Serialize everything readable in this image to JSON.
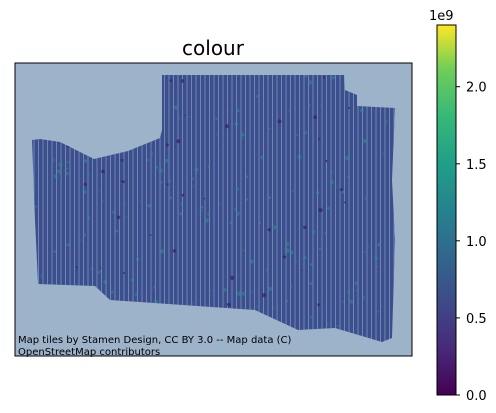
{
  "title": "colour",
  "map": {
    "background_color": "#9db3ca",
    "attribution_lines": [
      "Map tiles by Stamen Design, CC BY 3.0 -- Map data (C)",
      "OpenStreetMap contributors"
    ]
  },
  "colorbar": {
    "colormap": "viridis",
    "range": [
      0,
      2400000000
    ],
    "scale_label": "1e9",
    "tick_labels": [
      "0.0",
      "0.5",
      "1.0",
      "1.5",
      "2.0"
    ],
    "tick_values": [
      0,
      0.5,
      1.0,
      1.5,
      2.0
    ]
  },
  "colors": {
    "dominant_track": "#3b4f8f",
    "accent_track": "#2f8f8c",
    "dark_track": "#3a2366",
    "axis": "#000000"
  }
}
